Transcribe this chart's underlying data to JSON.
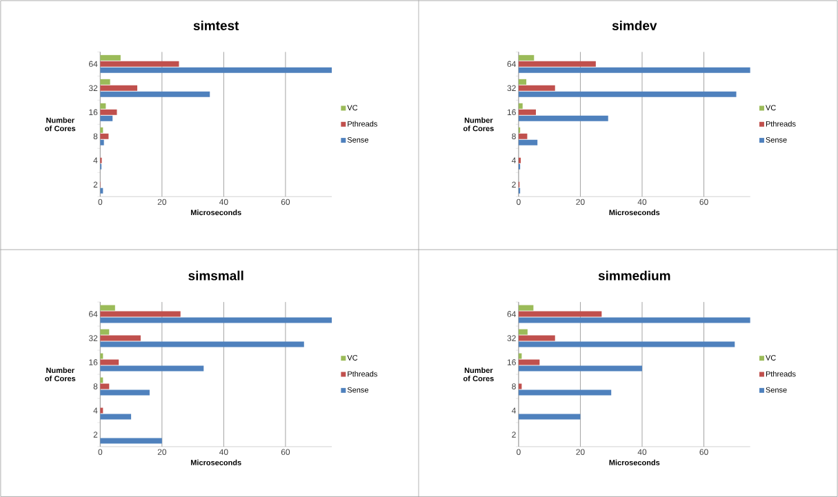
{
  "chart_data": [
    {
      "type": "bar",
      "orientation": "horizontal",
      "title": "simtest",
      "xlabel": "Microseconds",
      "ylabel": "Number of Cores",
      "categories": [
        "64",
        "32",
        "16",
        "8",
        "4",
        "2"
      ],
      "xlim": [
        0,
        75
      ],
      "xticks": [
        0,
        20,
        40,
        60
      ],
      "grid": "x",
      "legend": "right",
      "series": [
        {
          "name": "VC",
          "color": "#9bbb59",
          "values": [
            6.6,
            3.2,
            1.8,
            0.9,
            null,
            null
          ]
        },
        {
          "name": "Pthreads",
          "color": "#c0504d",
          "values": [
            25.5,
            12,
            5.4,
            2.7,
            0.5,
            0.1
          ]
        },
        {
          "name": "Sense",
          "color": "#4f81bd",
          "values": [
            75,
            35.5,
            4,
            1.2,
            0.4,
            0.9
          ]
        }
      ]
    },
    {
      "type": "bar",
      "orientation": "horizontal",
      "title": "simdev",
      "xlabel": "Microseconds",
      "ylabel": "Number of Cores",
      "categories": [
        "64",
        "32",
        "16",
        "8",
        "4",
        "2"
      ],
      "xlim": [
        0,
        75
      ],
      "xticks": [
        0,
        20,
        40,
        60
      ],
      "grid": "x",
      "legend": "right",
      "series": [
        {
          "name": "VC",
          "color": "#9bbb59",
          "values": [
            5,
            2.5,
            1.3,
            0.5,
            null,
            null
          ]
        },
        {
          "name": "Pthreads",
          "color": "#c0504d",
          "values": [
            25,
            11.8,
            5.6,
            2.8,
            0.7,
            0.3
          ]
        },
        {
          "name": "Sense",
          "color": "#4f81bd",
          "values": [
            75,
            70.5,
            29,
            6.1,
            0.5,
            0.5
          ]
        }
      ]
    },
    {
      "type": "bar",
      "orientation": "horizontal",
      "title": "simsmall",
      "xlabel": "Microseconds",
      "ylabel": "Number of Cores",
      "categories": [
        "64",
        "32",
        "16",
        "8",
        "4",
        "2"
      ],
      "xlim": [
        0,
        75
      ],
      "xticks": [
        0,
        20,
        40,
        60
      ],
      "grid": "x",
      "legend": "right",
      "series": [
        {
          "name": "VC",
          "color": "#9bbb59",
          "values": [
            4.8,
            2.9,
            0.9,
            0.9,
            0,
            0
          ]
        },
        {
          "name": "Pthreads",
          "color": "#c0504d",
          "values": [
            26,
            13.1,
            6,
            2.9,
            0.9,
            0
          ]
        },
        {
          "name": "Sense",
          "color": "#4f81bd",
          "values": [
            75,
            66,
            33.5,
            16,
            10,
            20
          ]
        }
      ]
    },
    {
      "type": "bar",
      "orientation": "horizontal",
      "title": "simmedium",
      "xlabel": "Microseconds",
      "ylabel": "Number of Cores",
      "categories": [
        "64",
        "32",
        "16",
        "8",
        "4",
        "2"
      ],
      "xlim": [
        0,
        75
      ],
      "xticks": [
        0,
        20,
        40,
        60
      ],
      "grid": "x",
      "legend": "right",
      "series": [
        {
          "name": "VC",
          "color": "#9bbb59",
          "values": [
            4.8,
            2.9,
            1,
            0,
            0,
            0
          ]
        },
        {
          "name": "Pthreads",
          "color": "#c0504d",
          "values": [
            26.9,
            11.8,
            6.8,
            1,
            0,
            0
          ]
        },
        {
          "name": "Sense",
          "color": "#4f81bd",
          "values": [
            75,
            70,
            40,
            30,
            20,
            0
          ]
        }
      ]
    }
  ]
}
